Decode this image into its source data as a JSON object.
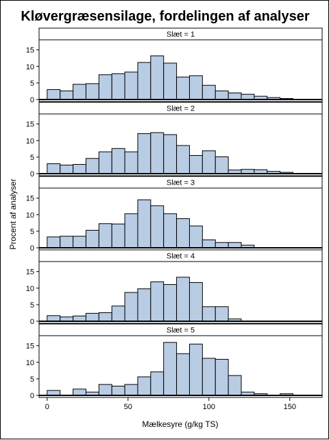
{
  "chart_data": {
    "type": "bar",
    "title": "Kløvergræsensilage, fordelingen af analyser",
    "xlabel": "Mælkesyre (g/kg TS)",
    "ylabel": "Procent af analyser",
    "xlim": [
      -5,
      170
    ],
    "ylim": [
      0,
      17
    ],
    "xticks": [
      0,
      50,
      100,
      150
    ],
    "yticks": [
      0,
      5,
      10,
      15
    ],
    "bin_width": 8,
    "bin_start": 0,
    "bar_color": "#b8cce4",
    "bar_edge_color": "#000000",
    "panels": [
      {
        "label": "Slæt = 1",
        "values": [
          3.0,
          2.6,
          4.6,
          4.8,
          7.5,
          7.8,
          8.3,
          11.2,
          13.2,
          11.0,
          6.8,
          7.2,
          4.3,
          2.6,
          2.0,
          1.6,
          1.0,
          0.6,
          0.3,
          0.1,
          0.1
        ]
      },
      {
        "label": "Slæt = 2",
        "values": [
          3.0,
          2.6,
          2.8,
          4.6,
          6.6,
          7.6,
          6.6,
          12.1,
          12.4,
          11.8,
          8.5,
          5.5,
          6.9,
          5.1,
          1.1,
          1.3,
          1.2,
          0.7,
          0.4,
          0,
          0
        ]
      },
      {
        "label": "Slæt = 3",
        "values": [
          3.3,
          3.5,
          3.5,
          5.3,
          7.3,
          7.2,
          10.3,
          14.5,
          12.7,
          10.3,
          8.8,
          6.6,
          2.4,
          1.6,
          1.6,
          0.8,
          0,
          0,
          0,
          0,
          0
        ]
      },
      {
        "label": "Slæt = 4",
        "values": [
          1.7,
          1.3,
          1.6,
          2.4,
          2.6,
          4.6,
          8.7,
          9.8,
          11.9,
          11.1,
          13.3,
          11.7,
          4.4,
          4.4,
          0.7,
          0,
          0,
          0,
          0,
          0,
          0
        ]
      },
      {
        "label": "Slæt = 5",
        "values": [
          1.5,
          0,
          1.9,
          1.0,
          3.3,
          2.8,
          3.3,
          5.6,
          7.1,
          16.0,
          12.6,
          15.5,
          11.2,
          10.9,
          6.0,
          1.0,
          0.5,
          0,
          0.5,
          0,
          0
        ]
      }
    ]
  }
}
